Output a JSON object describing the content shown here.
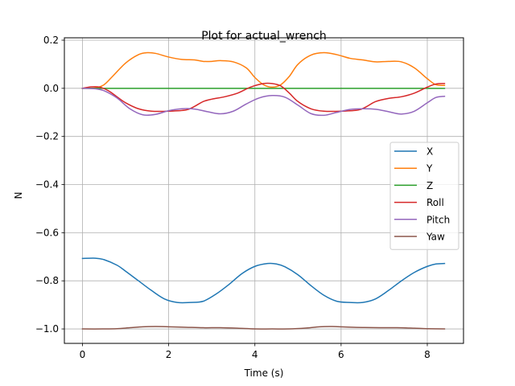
{
  "chart_data": {
    "type": "line",
    "title": "Plot for actual_wrench",
    "xlabel": "Time (s)",
    "ylabel": "N",
    "xlim": [
      -0.42,
      8.84
    ],
    "ylim": [
      -1.06,
      0.21
    ],
    "grid": true,
    "legend_position": "center-right",
    "x_ticks": [
      0,
      2,
      4,
      6,
      8
    ],
    "x_tick_labels": [
      "0",
      "2",
      "4",
      "6",
      "8"
    ],
    "y_ticks": [
      0.2,
      0.0,
      -0.2,
      -0.4,
      -0.6,
      -0.8,
      -1.0
    ],
    "y_tick_labels": [
      "0.2",
      "0.0",
      "−0.2",
      "−0.4",
      "−0.6",
      "−0.8",
      "−1.0"
    ],
    "series": [
      {
        "name": "X",
        "color": "#1f77b4",
        "x": [
          0,
          0.3,
          0.5,
          0.8,
          1.0,
          1.3,
          1.6,
          1.9,
          2.2,
          2.5,
          2.8,
          3.1,
          3.4,
          3.7,
          4.0,
          4.3,
          4.5,
          4.7,
          5.0,
          5.3,
          5.6,
          5.9,
          6.2,
          6.5,
          6.8,
          7.1,
          7.4,
          7.7,
          8.0,
          8.2,
          8.4
        ],
        "y": [
          -0.707,
          -0.706,
          -0.712,
          -0.735,
          -0.76,
          -0.8,
          -0.84,
          -0.875,
          -0.89,
          -0.89,
          -0.885,
          -0.855,
          -0.815,
          -0.77,
          -0.74,
          -0.728,
          -0.73,
          -0.742,
          -0.775,
          -0.82,
          -0.86,
          -0.885,
          -0.89,
          -0.89,
          -0.875,
          -0.84,
          -0.8,
          -0.765,
          -0.74,
          -0.73,
          -0.728
        ]
      },
      {
        "name": "Y",
        "color": "#ff7f0e",
        "x": [
          0,
          0.3,
          0.5,
          0.7,
          1.0,
          1.3,
          1.5,
          1.7,
          2.0,
          2.3,
          2.6,
          2.8,
          3.0,
          3.2,
          3.5,
          3.8,
          4.0,
          4.2,
          4.4,
          4.6,
          4.8,
          5.0,
          5.3,
          5.6,
          5.9,
          6.2,
          6.5,
          6.8,
          7.1,
          7.4,
          7.7,
          8.0,
          8.2,
          8.4
        ],
        "y": [
          0.0,
          0.002,
          0.015,
          0.05,
          0.105,
          0.14,
          0.148,
          0.145,
          0.13,
          0.12,
          0.118,
          0.112,
          0.112,
          0.115,
          0.11,
          0.085,
          0.045,
          0.015,
          0.005,
          0.015,
          0.05,
          0.1,
          0.138,
          0.148,
          0.14,
          0.125,
          0.118,
          0.11,
          0.112,
          0.11,
          0.085,
          0.04,
          0.015,
          0.012
        ]
      },
      {
        "name": "Z",
        "color": "#2ca02c",
        "x": [
          0,
          8.4
        ],
        "y": [
          0.0,
          0.0
        ]
      },
      {
        "name": "Roll",
        "color": "#d62728",
        "x": [
          0,
          0.2,
          0.4,
          0.6,
          0.8,
          1.0,
          1.3,
          1.6,
          2.0,
          2.4,
          2.6,
          2.8,
          3.0,
          3.3,
          3.6,
          3.9,
          4.2,
          4.4,
          4.6,
          4.8,
          5.0,
          5.3,
          5.6,
          6.0,
          6.4,
          6.6,
          6.8,
          7.1,
          7.4,
          7.7,
          8.0,
          8.2,
          8.4
        ],
        "y": [
          0.0,
          0.006,
          0.005,
          -0.01,
          -0.035,
          -0.06,
          -0.085,
          -0.095,
          -0.095,
          -0.09,
          -0.075,
          -0.055,
          -0.045,
          -0.035,
          -0.02,
          0.005,
          0.02,
          0.02,
          0.01,
          -0.02,
          -0.055,
          -0.085,
          -0.095,
          -0.095,
          -0.09,
          -0.075,
          -0.055,
          -0.042,
          -0.035,
          -0.02,
          0.005,
          0.018,
          0.02
        ]
      },
      {
        "name": "Pitch",
        "color": "#9467bd",
        "x": [
          0,
          0.3,
          0.5,
          0.8,
          1.1,
          1.4,
          1.7,
          2.0,
          2.3,
          2.6,
          2.9,
          3.2,
          3.5,
          3.8,
          4.1,
          4.4,
          4.7,
          5.0,
          5.3,
          5.6,
          5.9,
          6.2,
          6.5,
          6.8,
          7.1,
          7.4,
          7.7,
          8.0,
          8.2,
          8.4
        ],
        "y": [
          0.0,
          -0.002,
          -0.01,
          -0.04,
          -0.085,
          -0.11,
          -0.108,
          -0.093,
          -0.085,
          -0.086,
          -0.097,
          -0.106,
          -0.095,
          -0.065,
          -0.04,
          -0.03,
          -0.037,
          -0.07,
          -0.105,
          -0.112,
          -0.1,
          -0.088,
          -0.085,
          -0.087,
          -0.097,
          -0.107,
          -0.095,
          -0.06,
          -0.038,
          -0.033
        ]
      },
      {
        "name": "Yaw",
        "color": "#8c564b",
        "x": [
          0,
          0.5,
          0.8,
          1.1,
          1.4,
          1.7,
          2.0,
          2.4,
          2.8,
          3.2,
          3.6,
          4.0,
          4.4,
          4.8,
          5.2,
          5.5,
          5.8,
          6.1,
          6.5,
          6.9,
          7.3,
          7.7,
          8.0,
          8.4
        ],
        "y": [
          -1.0,
          -1.0,
          -0.999,
          -0.995,
          -0.991,
          -0.99,
          -0.991,
          -0.993,
          -0.995,
          -0.995,
          -0.997,
          -1.0,
          -1.0,
          -1.0,
          -0.996,
          -0.991,
          -0.99,
          -0.992,
          -0.994,
          -0.995,
          -0.995,
          -0.997,
          -0.999,
          -1.0
        ]
      }
    ]
  }
}
